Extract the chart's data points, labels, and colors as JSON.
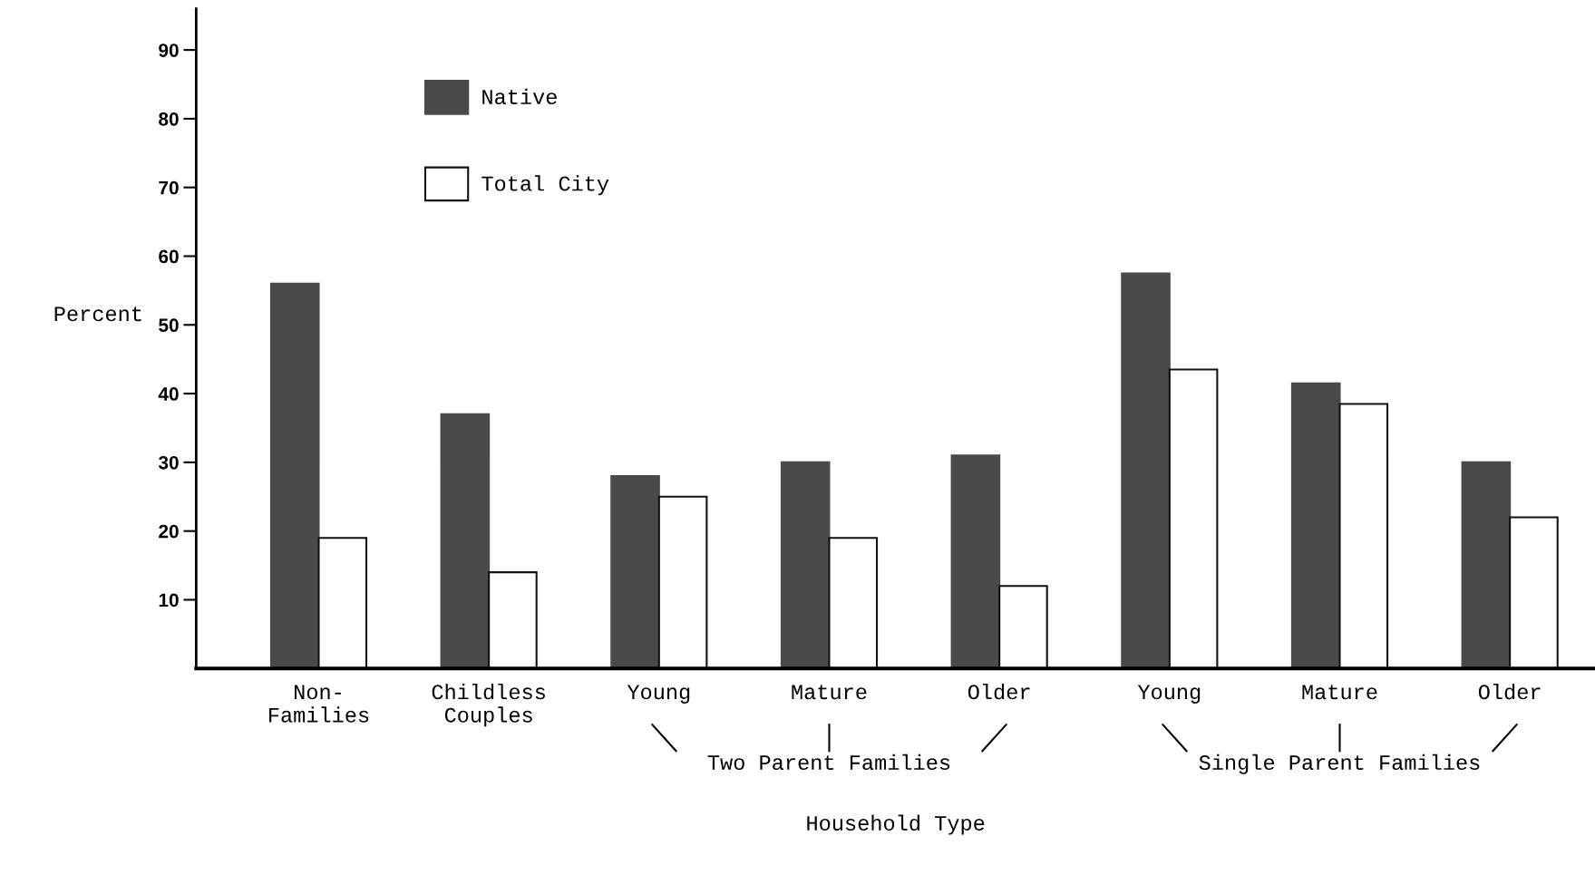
{
  "chart_data": {
    "type": "bar",
    "xlabel": "Household Type",
    "ylabel": "Percent",
    "categories": [
      "Non-\nFamilies",
      "Childless\nCouples",
      "Young",
      "Mature",
      "Older",
      "Young",
      "Mature",
      "Older"
    ],
    "series": [
      {
        "name": "Native",
        "color": "#4a4a4a",
        "values": [
          56,
          37,
          28,
          30,
          31,
          57.5,
          41.5,
          30
        ]
      },
      {
        "name": "Total City",
        "color": "#ffffff",
        "values": [
          19,
          14,
          25,
          19,
          12,
          43.5,
          38.5,
          22
        ]
      }
    ],
    "ylim": [
      0,
      96
    ],
    "yticks": [
      10,
      20,
      30,
      40,
      50,
      60,
      70,
      80,
      90
    ],
    "grid": false,
    "legend": "top left",
    "annotations": [
      "Two Parent Families",
      "Single Parent Families"
    ]
  }
}
